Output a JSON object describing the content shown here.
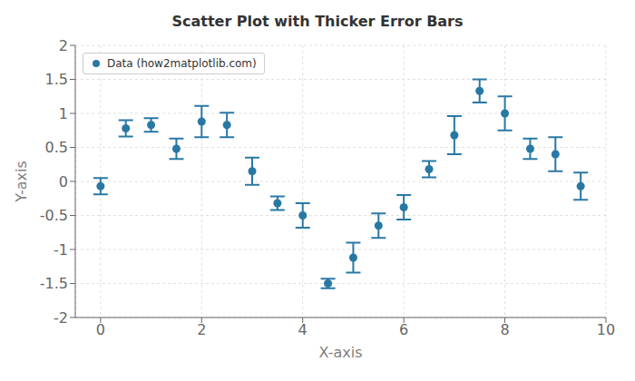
{
  "chart_data": {
    "type": "scatter",
    "title": "Scatter Plot with Thicker Error Bars",
    "x_label": "X-axis",
    "y_label": "Y-axis",
    "x": [
      0,
      0.5,
      1.0,
      1.5,
      2.0,
      2.5,
      3.0,
      3.5,
      4.0,
      4.5,
      5.0,
      5.5,
      6.0,
      6.5,
      7.0,
      7.5,
      8.0,
      8.5,
      9.0,
      9.5
    ],
    "series": [
      {
        "name": "Data (how2matplotlib.com)",
        "color": "#2878a4",
        "marker": "circle",
        "values": [
          -0.07,
          0.78,
          0.83,
          0.48,
          0.88,
          0.83,
          0.15,
          -0.32,
          -0.5,
          -1.5,
          -1.12,
          -0.65,
          -0.38,
          0.18,
          0.68,
          1.33,
          1.0,
          0.48,
          0.4,
          -0.07
        ],
        "yerr": [
          0.12,
          0.12,
          0.1,
          0.15,
          0.23,
          0.18,
          0.2,
          0.1,
          0.18,
          0.07,
          0.22,
          0.18,
          0.18,
          0.12,
          0.28,
          0.17,
          0.25,
          0.15,
          0.25,
          0.2
        ]
      }
    ],
    "xlim": [
      -0.5,
      10
    ],
    "xticks": [
      0,
      2,
      4,
      6,
      8,
      10
    ],
    "ylim": [
      -2,
      2
    ],
    "yticks": [
      -2,
      -1.5,
      -1,
      -0.5,
      0,
      0.5,
      1,
      1.5,
      2
    ],
    "grid": true,
    "legend": "upper left"
  }
}
